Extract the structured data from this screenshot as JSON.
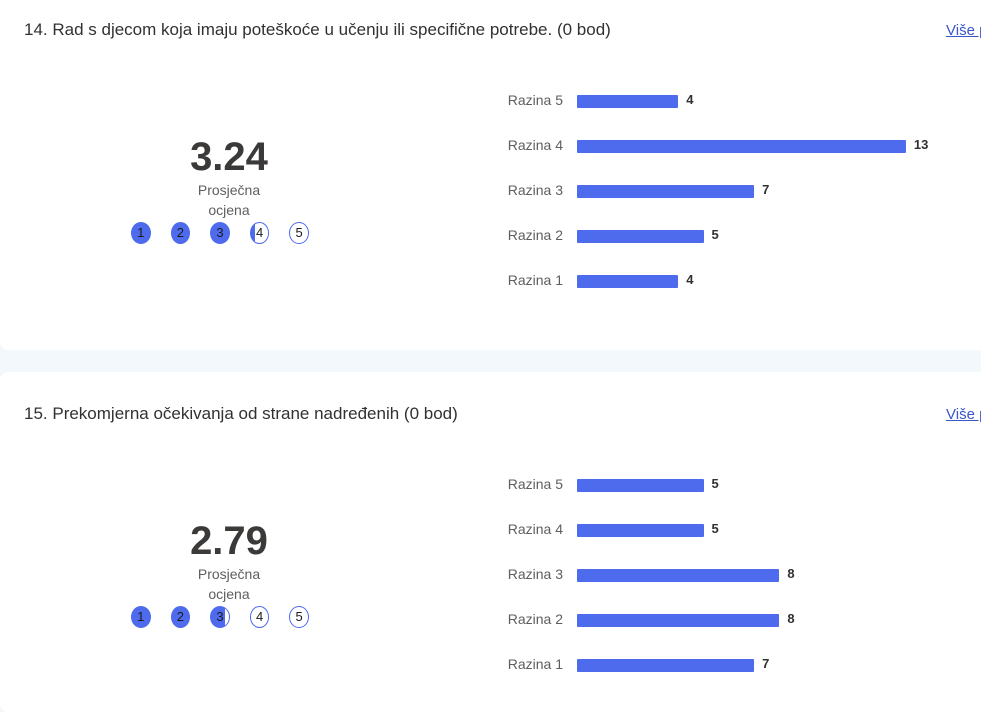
{
  "questions": [
    {
      "title": "14. Rad s djecom koja imaju poteškoće u učenju ili specifične potrebe. (0 bod)",
      "more_link": "Više p",
      "average": "3.24",
      "average_label": "Prosječna ocjena",
      "average_fraction": 3.24,
      "dots": [
        "1",
        "2",
        "3",
        "4",
        "5"
      ],
      "chart_data": {
        "type": "bar",
        "categories": [
          "Razina 5",
          "Razina 4",
          "Razina 3",
          "Razina 2",
          "Razina 1"
        ],
        "values": [
          4,
          13,
          7,
          5,
          4
        ]
      }
    },
    {
      "title": "15. Prekomjerna očekivanja od strane nadređenih (0 bod)",
      "more_link": "Više p",
      "average": "2.79",
      "average_label": "Prosječna ocjena",
      "average_fraction": 2.79,
      "dots": [
        "1",
        "2",
        "3",
        "4",
        "5"
      ],
      "chart_data": {
        "type": "bar",
        "categories": [
          "Razina 5",
          "Razina 4",
          "Razina 3",
          "Razina 2",
          "Razina 1"
        ],
        "values": [
          5,
          5,
          8,
          8,
          7
        ]
      }
    }
  ],
  "colors": {
    "accent": "#4f6bed",
    "link": "#3a56c8",
    "background": "#f3f8fc"
  }
}
